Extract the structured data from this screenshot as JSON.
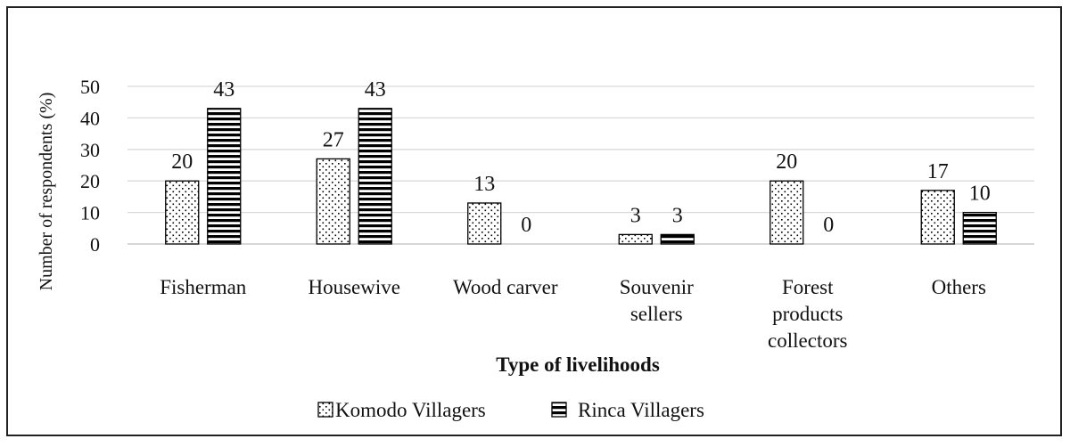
{
  "chart_data": {
    "type": "bar",
    "title": "",
    "xlabel": "Type of livelihoods",
    "ylabel": "Number of respondents (%)",
    "ylim": [
      0,
      50
    ],
    "yticks": [
      0,
      10,
      20,
      30,
      40,
      50
    ],
    "grid": true,
    "legend_position": "bottom",
    "categories": [
      [
        "Fisherman"
      ],
      [
        "Housewive"
      ],
      [
        "Wood carver"
      ],
      [
        "Souvenir",
        "sellers"
      ],
      [
        "Forest",
        "products",
        "collectors"
      ],
      [
        "Others"
      ]
    ],
    "series": [
      {
        "name": "Komodo Villagers",
        "pattern": "dots",
        "values": [
          20,
          27,
          13,
          3,
          20,
          17
        ]
      },
      {
        "name": "Rinca Villagers",
        "pattern": "horizontal-stripes",
        "values": [
          43,
          43,
          0,
          3,
          0,
          10
        ]
      }
    ],
    "colors": {
      "bar_outline": "#000000",
      "grid": "#d9d9d9",
      "frame": "#222222"
    }
  }
}
